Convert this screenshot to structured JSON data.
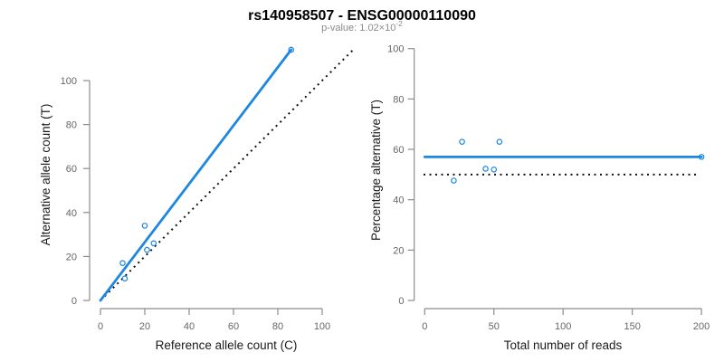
{
  "header": {
    "title": "rs140958507 - ENSG00000110090",
    "subtitle_main": "p-value: 1.02×10",
    "subtitle_exponent": "-2"
  },
  "colors": {
    "accent_blue": "#1e87e0",
    "line_black": "#111111",
    "axis_line": "#8c8c8c",
    "tick_text": "#666666",
    "axis_title_text": "#1a1a1a",
    "subtitle_text": "#8a8a8a",
    "title_text": "#000000",
    "background": "#ffffff"
  },
  "chart_data": [
    {
      "type": "scatter",
      "title": "",
      "xlabel": "Reference allele count (C)",
      "ylabel": "Alternative allele count (T)",
      "xlim": [
        0,
        100
      ],
      "ylim": [
        0,
        100
      ],
      "xticks": [
        0,
        20,
        40,
        60,
        80,
        100
      ],
      "yticks": [
        0,
        20,
        40,
        60,
        80,
        100
      ],
      "grid": false,
      "points": [
        [
          10,
          17
        ],
        [
          11,
          10
        ],
        [
          20,
          34
        ],
        [
          21,
          23
        ],
        [
          24,
          26
        ],
        [
          86,
          114
        ]
      ],
      "fit_line": {
        "style": "solid",
        "color": "blue",
        "from": [
          0,
          0
        ],
        "to": [
          86,
          114
        ]
      },
      "identity_line": {
        "style": "dotted",
        "color": "black",
        "from": [
          0,
          0
        ],
        "to": [
          114,
          114
        ]
      }
    },
    {
      "type": "scatter",
      "title": "",
      "xlabel": "Total number of reads",
      "ylabel": "Percentage alternative (T)",
      "xlim": [
        0,
        200
      ],
      "ylim": [
        0,
        100
      ],
      "xticks": [
        0,
        50,
        100,
        150,
        200
      ],
      "yticks": [
        0,
        20,
        40,
        60,
        80,
        100
      ],
      "grid": false,
      "points": [
        [
          27,
          63
        ],
        [
          21,
          47.6
        ],
        [
          54,
          63
        ],
        [
          44,
          52.3
        ],
        [
          50,
          52
        ],
        [
          200,
          57
        ]
      ],
      "hline_solid": {
        "style": "solid",
        "color": "blue",
        "y": 57,
        "marker_at_end": true
      },
      "hline_dotted": {
        "style": "dotted",
        "color": "black",
        "y": 50
      }
    }
  ]
}
